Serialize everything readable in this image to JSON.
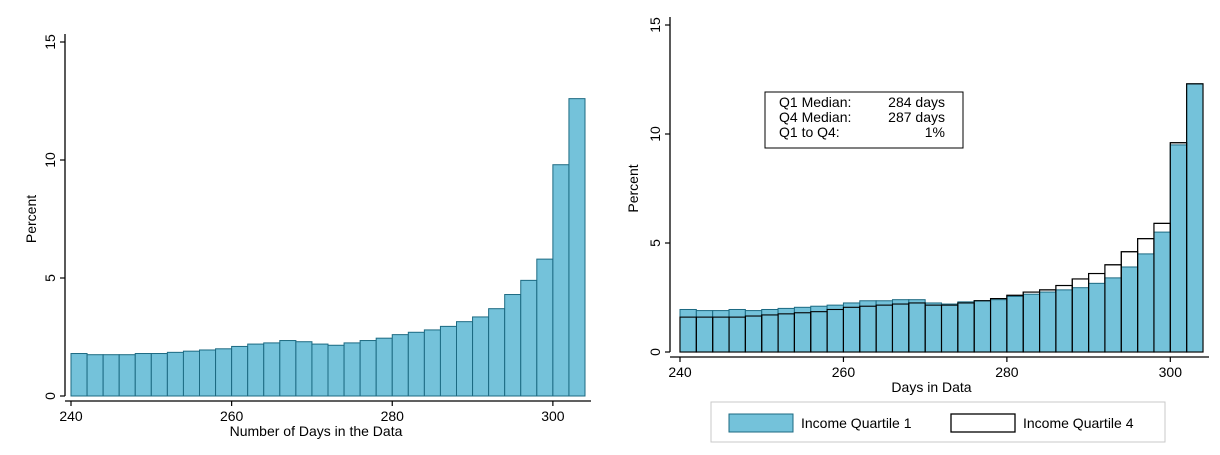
{
  "colors": {
    "bar_fill": "#74c2da",
    "bar_stroke": "#1c6a82",
    "outline_stroke": "#000000",
    "q4_fill": "#ffffff"
  },
  "chart_data": [
    {
      "type": "bar",
      "xlabel": "Number of Days in the Data",
      "ylabel": "Percent",
      "xlim": [
        240,
        304
      ],
      "ylim": [
        0,
        15
      ],
      "xticks": [
        "240",
        "260",
        "280",
        "300"
      ],
      "yticks": [
        "0",
        "5",
        "10",
        "15"
      ],
      "bin_width": 2,
      "bins": [
        240,
        242,
        244,
        246,
        248,
        250,
        252,
        254,
        256,
        258,
        260,
        262,
        264,
        266,
        268,
        270,
        272,
        274,
        276,
        278,
        280,
        282,
        284,
        286,
        288,
        290,
        292,
        294,
        296,
        298,
        300,
        302
      ],
      "values": [
        1.8,
        1.75,
        1.75,
        1.75,
        1.8,
        1.8,
        1.85,
        1.9,
        1.95,
        2.0,
        2.1,
        2.2,
        2.25,
        2.35,
        2.3,
        2.2,
        2.15,
        2.25,
        2.35,
        2.45,
        2.6,
        2.7,
        2.8,
        2.95,
        3.15,
        3.35,
        3.7,
        4.3,
        4.9,
        5.8,
        9.8,
        12.6
      ]
    },
    {
      "type": "bar",
      "xlabel": "Days in Data",
      "ylabel": "Percent",
      "xlim": [
        240,
        304
      ],
      "ylim": [
        0,
        15
      ],
      "xticks": [
        "240",
        "260",
        "280",
        "300"
      ],
      "yticks": [
        "0",
        "5",
        "10",
        "15"
      ],
      "bin_width": 2,
      "bins": [
        240,
        242,
        244,
        246,
        248,
        250,
        252,
        254,
        256,
        258,
        260,
        262,
        264,
        266,
        268,
        270,
        272,
        274,
        276,
        278,
        280,
        282,
        284,
        286,
        288,
        290,
        292,
        294,
        296,
        298,
        300,
        302
      ],
      "series": [
        {
          "name": "Income Quartile 1",
          "values": [
            1.95,
            1.9,
            1.9,
            1.95,
            1.9,
            1.95,
            2.0,
            2.05,
            2.1,
            2.15,
            2.25,
            2.35,
            2.35,
            2.4,
            2.4,
            2.25,
            2.2,
            2.3,
            2.35,
            2.4,
            2.55,
            2.65,
            2.75,
            2.85,
            2.95,
            3.15,
            3.4,
            3.9,
            4.5,
            5.5,
            9.5,
            12.3
          ]
        },
        {
          "name": "Income Quartile 4",
          "values": [
            1.6,
            1.6,
            1.6,
            1.6,
            1.65,
            1.7,
            1.75,
            1.8,
            1.85,
            1.95,
            2.05,
            2.1,
            2.15,
            2.2,
            2.25,
            2.15,
            2.15,
            2.25,
            2.35,
            2.45,
            2.6,
            2.75,
            2.85,
            3.05,
            3.35,
            3.6,
            4.0,
            4.6,
            5.2,
            5.9,
            9.6,
            12.3
          ]
        }
      ],
      "legend": {
        "placement": "bottom",
        "items": [
          "Income Quartile 1",
          "Income Quartile 4"
        ]
      },
      "annotation": {
        "lines": [
          {
            "label": "Q1 Median:",
            "value": "284 days"
          },
          {
            "label": "Q4 Median:",
            "value": "287 days"
          },
          {
            "label": "Q1 to Q4:",
            "value": "1%"
          }
        ]
      }
    }
  ]
}
